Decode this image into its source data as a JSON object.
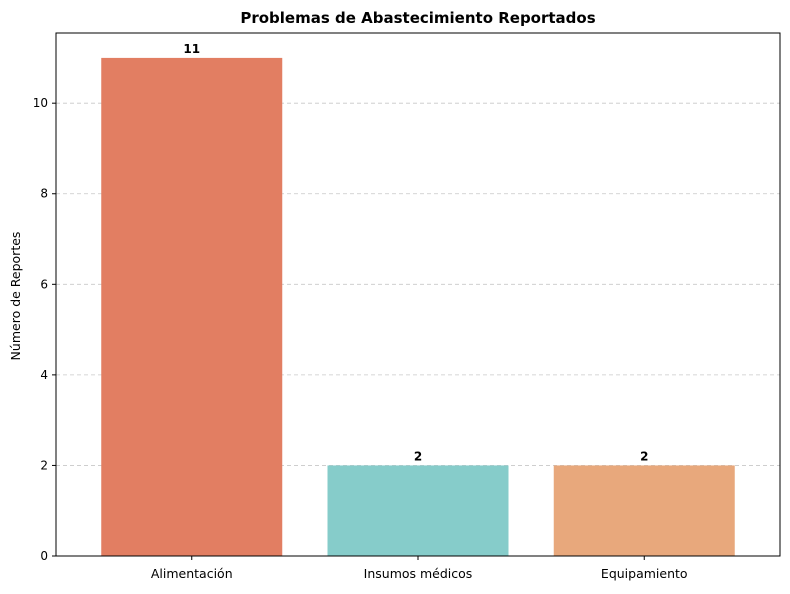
{
  "chart_data": {
    "type": "bar",
    "title": "Problemas de Abastecimiento Reportados",
    "xlabel": "",
    "ylabel": "Número de Reportes",
    "categories": [
      "Alimentación",
      "Insumos médicos",
      "Equipamiento"
    ],
    "values": [
      11,
      2,
      2
    ],
    "data_labels": [
      "11",
      "2",
      "2"
    ],
    "colors": [
      "#E27E62",
      "#86CCCA",
      "#E8A87C"
    ],
    "ylim": [
      0,
      11.55
    ],
    "yticks": [
      0,
      2,
      4,
      6,
      8,
      10
    ],
    "grid": "y-dashed",
    "legend": "none"
  }
}
